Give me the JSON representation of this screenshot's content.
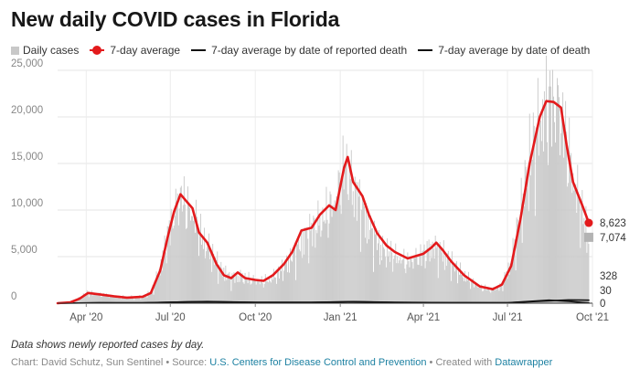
{
  "chart_data": {
    "type": "bar",
    "title": "New daily COVID cases in Florida",
    "x_axis": {
      "type": "date",
      "range": [
        "2020-03-01",
        "2021-10-01"
      ],
      "ticks": [
        {
          "date": "2020-04-01",
          "label": "Apr '20"
        },
        {
          "date": "2020-07-01",
          "label": "Jul '20"
        },
        {
          "date": "2020-10-01",
          "label": "Oct '20"
        },
        {
          "date": "2021-01-01",
          "label": "Jan '21"
        },
        {
          "date": "2021-04-01",
          "label": "Apr '21"
        },
        {
          "date": "2021-07-01",
          "label": "Jul '21"
        },
        {
          "date": "2021-10-01",
          "label": "Oct '21"
        }
      ]
    },
    "y_axis": {
      "ylim": [
        0,
        25000
      ],
      "ticks": [
        {
          "value": 0,
          "label": "0"
        },
        {
          "value": 5000,
          "label": "5,000"
        },
        {
          "value": 10000,
          "label": "10,000"
        },
        {
          "value": 15000,
          "label": "15,000"
        },
        {
          "value": 20000,
          "label": "20,000"
        },
        {
          "value": 25000,
          "label": "25,000"
        }
      ],
      "grid": true
    },
    "legend": {
      "position": "top",
      "items": [
        {
          "label": "Daily cases",
          "symbol": "square",
          "color": "#c8c8c8"
        },
        {
          "label": "7-day average",
          "symbol": "line-dot",
          "color": "#e31a1c"
        },
        {
          "label": "7-day average by date of reported death",
          "symbol": "line",
          "color": "#111111"
        },
        {
          "label": "7-day average by date of death",
          "symbol": "line",
          "color": "#111111"
        }
      ]
    },
    "series": [
      {
        "name": "Daily cases",
        "type": "bar",
        "color": "#c8c8c8",
        "points": [
          [
            "2020-03-01",
            0
          ],
          [
            "2020-03-15",
            100
          ],
          [
            "2020-03-25",
            600
          ],
          [
            "2020-04-03",
            1200
          ],
          [
            "2020-04-15",
            1000
          ],
          [
            "2020-05-01",
            800
          ],
          [
            "2020-05-15",
            650
          ],
          [
            "2020-06-01",
            700
          ],
          [
            "2020-06-10",
            1200
          ],
          [
            "2020-06-20",
            3800
          ],
          [
            "2020-06-28",
            7500
          ],
          [
            "2020-07-05",
            10000
          ],
          [
            "2020-07-12",
            12000
          ],
          [
            "2020-07-20",
            10500
          ],
          [
            "2020-07-28",
            9500
          ],
          [
            "2020-08-05",
            7000
          ],
          [
            "2020-08-15",
            5500
          ],
          [
            "2020-08-25",
            3800
          ],
          [
            "2020-09-05",
            2800
          ],
          [
            "2020-09-15",
            3000
          ],
          [
            "2020-09-25",
            2700
          ],
          [
            "2020-10-05",
            2400
          ],
          [
            "2020-10-15",
            2500
          ],
          [
            "2020-10-25",
            3200
          ],
          [
            "2020-11-05",
            4500
          ],
          [
            "2020-11-15",
            6000
          ],
          [
            "2020-11-25",
            7500
          ],
          [
            "2020-12-05",
            8500
          ],
          [
            "2020-12-15",
            9500
          ],
          [
            "2020-12-25",
            11000
          ],
          [
            "2021-01-01",
            13000
          ],
          [
            "2021-01-07",
            15500
          ],
          [
            "2021-01-14",
            13000
          ],
          [
            "2021-01-21",
            11500
          ],
          [
            "2021-02-01",
            8500
          ],
          [
            "2021-02-15",
            6000
          ],
          [
            "2021-03-01",
            5200
          ],
          [
            "2021-03-15",
            4500
          ],
          [
            "2021-04-01",
            5500
          ],
          [
            "2021-04-10",
            6200
          ],
          [
            "2021-04-20",
            5800
          ],
          [
            "2021-05-01",
            4500
          ],
          [
            "2021-05-15",
            3000
          ],
          [
            "2021-06-01",
            1800
          ],
          [
            "2021-06-15",
            1500
          ],
          [
            "2021-06-25",
            2000
          ],
          [
            "2021-07-05",
            4500
          ],
          [
            "2021-07-15",
            10000
          ],
          [
            "2021-07-25",
            16000
          ],
          [
            "2021-08-05",
            20000
          ],
          [
            "2021-08-15",
            22500
          ],
          [
            "2021-08-25",
            22000
          ],
          [
            "2021-09-01",
            19500
          ],
          [
            "2021-09-10",
            14000
          ],
          [
            "2021-09-20",
            10000
          ],
          [
            "2021-09-27",
            7074
          ]
        ]
      },
      {
        "name": "7-day average",
        "type": "line",
        "color": "#e31a1c",
        "points": [
          [
            "2020-03-01",
            0
          ],
          [
            "2020-03-15",
            100
          ],
          [
            "2020-03-25",
            500
          ],
          [
            "2020-04-03",
            1100
          ],
          [
            "2020-04-15",
            950
          ],
          [
            "2020-05-01",
            750
          ],
          [
            "2020-05-15",
            600
          ],
          [
            "2020-06-01",
            700
          ],
          [
            "2020-06-10",
            1100
          ],
          [
            "2020-06-20",
            3500
          ],
          [
            "2020-06-28",
            7000
          ],
          [
            "2020-07-05",
            9800
          ],
          [
            "2020-07-12",
            11700
          ],
          [
            "2020-07-18",
            11000
          ],
          [
            "2020-07-25",
            10200
          ],
          [
            "2020-08-01",
            7600
          ],
          [
            "2020-08-10",
            6500
          ],
          [
            "2020-08-20",
            4200
          ],
          [
            "2020-08-28",
            3000
          ],
          [
            "2020-09-05",
            2700
          ],
          [
            "2020-09-12",
            3300
          ],
          [
            "2020-09-20",
            2700
          ],
          [
            "2020-10-01",
            2500
          ],
          [
            "2020-10-10",
            2400
          ],
          [
            "2020-10-20",
            3000
          ],
          [
            "2020-11-01",
            4200
          ],
          [
            "2020-11-10",
            5500
          ],
          [
            "2020-11-20",
            7800
          ],
          [
            "2020-12-01",
            8100
          ],
          [
            "2020-12-10",
            9500
          ],
          [
            "2020-12-20",
            10500
          ],
          [
            "2020-12-27",
            10000
          ],
          [
            "2021-01-05",
            14500
          ],
          [
            "2021-01-09",
            15700
          ],
          [
            "2021-01-15",
            13000
          ],
          [
            "2021-01-25",
            11500
          ],
          [
            "2021-02-01",
            9500
          ],
          [
            "2021-02-10",
            7500
          ],
          [
            "2021-02-20",
            6200
          ],
          [
            "2021-03-01",
            5500
          ],
          [
            "2021-03-15",
            4800
          ],
          [
            "2021-04-01",
            5300
          ],
          [
            "2021-04-10",
            6000
          ],
          [
            "2021-04-15",
            6500
          ],
          [
            "2021-04-22",
            5700
          ],
          [
            "2021-05-01",
            4500
          ],
          [
            "2021-05-15",
            3000
          ],
          [
            "2021-06-01",
            1800
          ],
          [
            "2021-06-15",
            1500
          ],
          [
            "2021-06-25",
            2000
          ],
          [
            "2021-07-05",
            4000
          ],
          [
            "2021-07-15",
            9000
          ],
          [
            "2021-07-25",
            15000
          ],
          [
            "2021-08-05",
            20000
          ],
          [
            "2021-08-12",
            21700
          ],
          [
            "2021-08-20",
            21600
          ],
          [
            "2021-08-28",
            21000
          ],
          [
            "2021-09-03",
            17000
          ],
          [
            "2021-09-10",
            13000
          ],
          [
            "2021-09-20",
            10500
          ],
          [
            "2021-09-27",
            8623
          ]
        ],
        "end_label": "8,623"
      },
      {
        "name": "7-day average by date of reported death",
        "type": "line",
        "color": "#111111",
        "points": [
          [
            "2020-03-01",
            0
          ],
          [
            "2020-04-15",
            50
          ],
          [
            "2020-06-01",
            40
          ],
          [
            "2020-07-20",
            150
          ],
          [
            "2020-08-10",
            180
          ],
          [
            "2020-10-01",
            100
          ],
          [
            "2020-12-01",
            90
          ],
          [
            "2021-01-15",
            170
          ],
          [
            "2021-03-01",
            100
          ],
          [
            "2021-05-01",
            60
          ],
          [
            "2021-07-01",
            50
          ],
          [
            "2021-08-15",
            250
          ],
          [
            "2021-09-05",
            350
          ],
          [
            "2021-09-27",
            328
          ]
        ],
        "end_label": "328"
      },
      {
        "name": "7-day average by date of death",
        "type": "line",
        "color": "#111111",
        "points": [
          [
            "2020-03-01",
            0
          ],
          [
            "2020-04-15",
            40
          ],
          [
            "2020-06-01",
            30
          ],
          [
            "2020-07-20",
            140
          ],
          [
            "2020-08-10",
            160
          ],
          [
            "2020-10-01",
            80
          ],
          [
            "2020-12-01",
            80
          ],
          [
            "2021-01-15",
            160
          ],
          [
            "2021-03-01",
            80
          ],
          [
            "2021-05-01",
            50
          ],
          [
            "2021-07-01",
            40
          ],
          [
            "2021-08-15",
            320
          ],
          [
            "2021-09-05",
            200
          ],
          [
            "2021-09-27",
            30
          ]
        ],
        "end_label": "30"
      }
    ],
    "annotations": [
      {
        "label": "7,074",
        "series": "Daily cases"
      },
      {
        "label": "0"
      }
    ]
  },
  "notes": {
    "caption": "Data shows newly reported cases by day.",
    "credit_prefix": "Chart: David Schutz, Sun Sentinel • Source: ",
    "source_link": "U.S. Centers for Disease Control and Prevention",
    "credit_mid": " • Created with ",
    "tool_link": "Datawrapper"
  }
}
